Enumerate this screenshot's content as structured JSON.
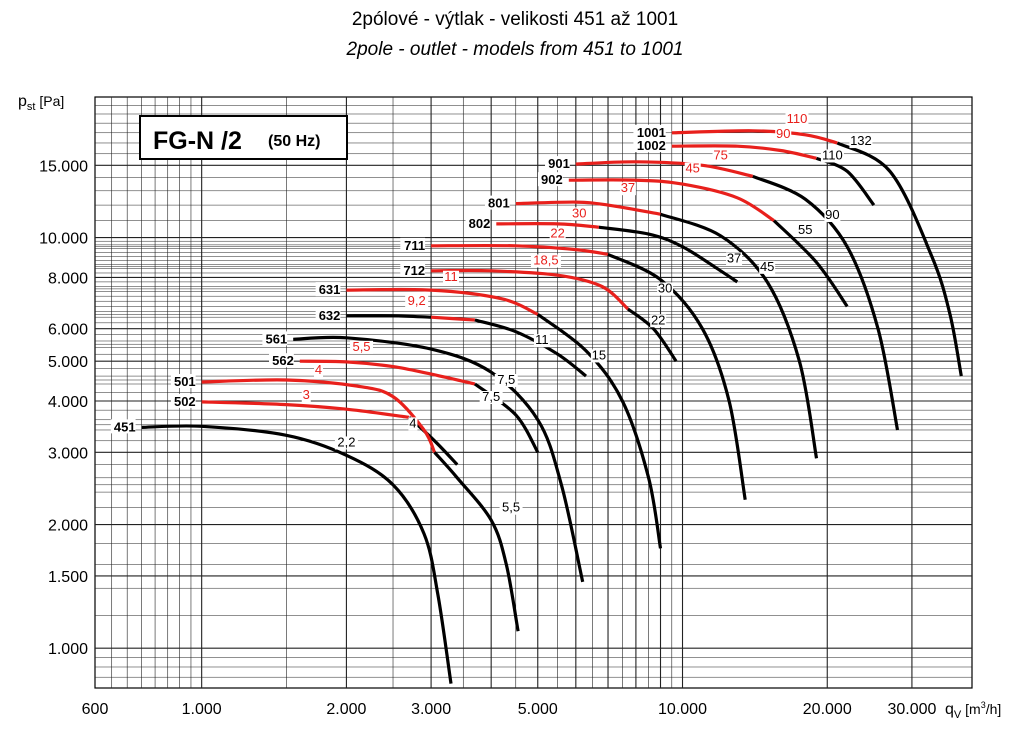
{
  "title_cz": "2pólové - výtlak - velikosti 451 až 1001",
  "title_en": "2pole - outlet - models from 451 to 1001",
  "chart_data": {
    "type": "line",
    "title": "2pólové - výtlak - velikosti 451 až 1001",
    "subtitle": "2pole - outlet - models from 451 to 1001",
    "box_label": "FG-N /2",
    "box_sublabel": "(50 Hz)",
    "ylabel": "p",
    "ylabel_sub": "st",
    "ylabel_unit": "[Pa]",
    "xlabel": "q",
    "xlabel_sub": "V",
    "xlabel_unit": "[m",
    "xlabel_unit_sup": "3",
    "xlabel_unit_end": "/h]",
    "xscale": "log",
    "yscale": "log",
    "xlim": [
      600,
      40000
    ],
    "ylim": [
      800,
      22000
    ],
    "grid": true,
    "xticks": [
      {
        "value": 600,
        "label": "600"
      },
      {
        "value": 1000,
        "label": "1.000"
      },
      {
        "value": 2000,
        "label": "2.000"
      },
      {
        "value": 3000,
        "label": "3.000"
      },
      {
        "value": 5000,
        "label": "5.000"
      },
      {
        "value": 10000,
        "label": "10.000"
      },
      {
        "value": 20000,
        "label": "20.000"
      },
      {
        "value": 30000,
        "label": "30.000"
      }
    ],
    "yticks": [
      {
        "value": 1000,
        "label": "1.000"
      },
      {
        "value": 1500,
        "label": "1.500"
      },
      {
        "value": 2000,
        "label": "2.000"
      },
      {
        "value": 3000,
        "label": "3.000"
      },
      {
        "value": 4000,
        "label": "4.000"
      },
      {
        "value": 5000,
        "label": "5.000"
      },
      {
        "value": 6000,
        "label": "6.000"
      },
      {
        "value": 8000,
        "label": "8.000"
      },
      {
        "value": 10000,
        "label": "10.000"
      },
      {
        "value": 15000,
        "label": "15.000"
      }
    ],
    "colors": {
      "black": "#000000",
      "red": "#e8201c",
      "grid": "#222222"
    },
    "series": [
      {
        "name": "451",
        "segments": [
          {
            "color": "black",
            "points": [
              [
                750,
                3450
              ],
              [
                1000,
                3470
              ],
              [
                1500,
                3300
              ],
              [
                2000,
                2950
              ],
              [
                2500,
                2500
              ],
              [
                2900,
                1900
              ],
              [
                3100,
                1350
              ],
              [
                3300,
                820
              ]
            ]
          }
        ],
        "power_labels": [
          {
            "text": "2,2",
            "color": "black",
            "x": 2000,
            "y": 3100
          }
        ]
      },
      {
        "name": "502",
        "segments": [
          {
            "color": "red",
            "points": [
              [
                1000,
                3980
              ],
              [
                1500,
                3920
              ],
              [
                2000,
                3820
              ],
              [
                2700,
                3650
              ]
            ]
          },
          {
            "color": "black",
            "points": [
              [
                2700,
                3650
              ],
              [
                3050,
                3200
              ],
              [
                3400,
                2800
              ]
            ]
          }
        ],
        "power_labels": [
          {
            "text": "3",
            "color": "red",
            "x": 1650,
            "y": 4050
          },
          {
            "text": "4",
            "color": "black",
            "x": 2750,
            "y": 3450
          }
        ]
      },
      {
        "name": "501",
        "segments": [
          {
            "color": "red",
            "points": [
              [
                1000,
                4450
              ],
              [
                1500,
                4500
              ],
              [
                2100,
                4350
              ],
              [
                2500,
                4100
              ],
              [
                2900,
                3400
              ],
              [
                3050,
                3000
              ]
            ]
          },
          {
            "color": "black",
            "points": [
              [
                3050,
                3000
              ],
              [
                3400,
                2600
              ],
              [
                4000,
                2050
              ],
              [
                4300,
                1600
              ],
              [
                4550,
                1100
              ]
            ]
          }
        ],
        "power_labels": [
          {
            "text": "4",
            "color": "red",
            "x": 1750,
            "y": 4650
          },
          {
            "text": "5,5",
            "color": "black",
            "x": 4400,
            "y": 2150
          }
        ]
      },
      {
        "name": "562",
        "segments": [
          {
            "color": "red",
            "points": [
              [
                1600,
                5000
              ],
              [
                2000,
                4980
              ],
              [
                2500,
                4850
              ],
              [
                3000,
                4650
              ],
              [
                3700,
                4400
              ]
            ]
          },
          {
            "color": "black",
            "points": [
              [
                3700,
                4400
              ],
              [
                4500,
                3700
              ],
              [
                5000,
                3000
              ]
            ]
          }
        ],
        "power_labels": [
          {
            "text": "5,5",
            "color": "red",
            "x": 2150,
            "y": 5300
          },
          {
            "text": "7,5",
            "color": "black",
            "x": 4000,
            "y": 4000
          }
        ]
      },
      {
        "name": "561",
        "segments": [
          {
            "color": "black",
            "points": [
              [
                1550,
                5650
              ],
              [
                2000,
                5700
              ],
              [
                3000,
                5350
              ],
              [
                4000,
                4700
              ],
              [
                5000,
                3600
              ],
              [
                5600,
                2500
              ],
              [
                6200,
                1450
              ]
            ]
          }
        ],
        "power_labels": [
          {
            "text": "7,5",
            "color": "black",
            "x": 4300,
            "y": 4400
          }
        ]
      },
      {
        "name": "632",
        "segments": [
          {
            "color": "black",
            "points": [
              [
                2000,
                6450
              ],
              [
                2500,
                6450
              ],
              [
                3000,
                6400
              ]
            ]
          },
          {
            "color": "red",
            "points": [
              [
                3000,
                6400
              ],
              [
                3700,
                6300
              ]
            ]
          },
          {
            "color": "black",
            "points": [
              [
                3700,
                6300
              ],
              [
                4500,
                5900
              ],
              [
                5500,
                5200
              ],
              [
                6300,
                4600
              ]
            ]
          }
        ],
        "power_labels": [
          {
            "text": "9,2",
            "color": "red",
            "x": 2800,
            "y": 6850
          },
          {
            "text": "11",
            "color": "black",
            "x": 5100,
            "y": 5500
          }
        ]
      },
      {
        "name": "631",
        "segments": [
          {
            "color": "red",
            "points": [
              [
                2000,
                7450
              ],
              [
                3000,
                7450
              ],
              [
                4200,
                7100
              ],
              [
                5000,
                6500
              ]
            ]
          },
          {
            "color": "black",
            "points": [
              [
                5000,
                6500
              ],
              [
                6300,
                5300
              ],
              [
                7500,
                4000
              ],
              [
                8500,
                2600
              ],
              [
                9000,
                1750
              ]
            ]
          }
        ],
        "power_labels": [
          {
            "text": "11",
            "color": "red",
            "x": 3300,
            "y": 7850
          },
          {
            "text": "15",
            "color": "black",
            "x": 6700,
            "y": 5050
          }
        ]
      },
      {
        "name": "712",
        "segments": [
          {
            "color": "red",
            "points": [
              [
                3000,
                8300
              ],
              [
                4000,
                8300
              ],
              [
                5500,
                8100
              ],
              [
                6800,
                7600
              ],
              [
                7700,
                6700
              ]
            ]
          },
          {
            "color": "black",
            "points": [
              [
                7700,
                6700
              ],
              [
                8700,
                6000
              ],
              [
                9700,
                5000
              ]
            ]
          }
        ],
        "power_labels": [
          {
            "text": "18,5",
            "color": "red",
            "x": 5200,
            "y": 8600
          },
          {
            "text": "22",
            "color": "black",
            "x": 8900,
            "y": 6150
          }
        ]
      },
      {
        "name": "711",
        "segments": [
          {
            "color": "red",
            "points": [
              [
                3000,
                9550
              ],
              [
                4500,
                9550
              ],
              [
                6000,
                9350
              ],
              [
                7000,
                9100
              ]
            ]
          },
          {
            "color": "black",
            "points": [
              [
                7000,
                9100
              ],
              [
                9000,
                7900
              ],
              [
                11000,
                6000
              ],
              [
                12500,
                4000
              ],
              [
                13500,
                2300
              ]
            ]
          }
        ],
        "power_labels": [
          {
            "text": "22",
            "color": "red",
            "x": 5500,
            "y": 10000
          },
          {
            "text": "30",
            "color": "black",
            "x": 9200,
            "y": 7350
          }
        ]
      },
      {
        "name": "802",
        "segments": [
          {
            "color": "red",
            "points": [
              [
                4100,
                10800
              ],
              [
                5500,
                10800
              ],
              [
                6700,
                10600
              ]
            ]
          },
          {
            "color": "black",
            "points": [
              [
                6700,
                10600
              ],
              [
                8500,
                10200
              ],
              [
                10000,
                9500
              ],
              [
                12000,
                8300
              ],
              [
                13000,
                7800
              ]
            ]
          }
        ],
        "power_labels": [
          {
            "text": "30",
            "color": "red",
            "x": 6100,
            "y": 11200
          },
          {
            "text": "37",
            "color": "black",
            "x": 12800,
            "y": 8700
          }
        ]
      },
      {
        "name": "801",
        "segments": [
          {
            "color": "red",
            "points": [
              [
                4500,
                12100
              ],
              [
                6000,
                12200
              ],
              [
                7000,
                12000
              ],
              [
                9000,
                11400
              ]
            ]
          },
          {
            "color": "black",
            "points": [
              [
                9000,
                11400
              ],
              [
                12000,
                10100
              ],
              [
                15000,
                7800
              ],
              [
                17500,
                5000
              ],
              [
                19000,
                2900
              ]
            ]
          }
        ],
        "power_labels": [
          {
            "text": "37",
            "color": "red",
            "x": 7700,
            "y": 12900
          },
          {
            "text": "45",
            "color": "black",
            "x": 15000,
            "y": 8300
          }
        ]
      },
      {
        "name": "902",
        "segments": [
          {
            "color": "red",
            "points": [
              [
                5800,
                13800
              ],
              [
                8000,
                13800
              ],
              [
                10000,
                13500
              ],
              [
                13000,
                12500
              ],
              [
                15500,
                11000
              ]
            ]
          },
          {
            "color": "black",
            "points": [
              [
                15500,
                11000
              ],
              [
                19000,
                8700
              ],
              [
                22000,
                6800
              ]
            ]
          }
        ],
        "power_labels": [
          {
            "text": "45",
            "color": "red",
            "x": 10500,
            "y": 14400
          },
          {
            "text": "55",
            "color": "black",
            "x": 18000,
            "y": 10200
          }
        ]
      },
      {
        "name": "901",
        "segments": [
          {
            "color": "red",
            "points": [
              [
                6000,
                15100
              ],
              [
                8000,
                15300
              ],
              [
                11000,
                15000
              ],
              [
                14000,
                14100
              ]
            ]
          },
          {
            "color": "black",
            "points": [
              [
                14000,
                14100
              ],
              [
                18000,
                12400
              ],
              [
                22000,
                9500
              ],
              [
                25500,
                6000
              ],
              [
                28000,
                3400
              ]
            ]
          }
        ],
        "power_labels": [
          {
            "text": "75",
            "color": "red",
            "x": 12000,
            "y": 15500
          },
          {
            "text": "90",
            "color": "black",
            "x": 20500,
            "y": 11100
          }
        ]
      },
      {
        "name": "1002",
        "segments": [
          {
            "color": "red",
            "points": [
              [
                9500,
                16700
              ],
              [
                13000,
                16700
              ],
              [
                16000,
                16300
              ],
              [
                19000,
                15600
              ]
            ]
          },
          {
            "color": "black",
            "points": [
              [
                19000,
                15600
              ],
              [
                22000,
                14500
              ],
              [
                25000,
                12000
              ]
            ]
          }
        ],
        "power_labels": [
          {
            "text": "90",
            "color": "red",
            "x": 16200,
            "y": 17500
          },
          {
            "text": "110",
            "color": "black",
            "x": 20500,
            "y": 15500
          }
        ]
      },
      {
        "name": "1001",
        "segments": [
          {
            "color": "red",
            "points": [
              [
                9500,
                18000
              ],
              [
                14000,
                18200
              ],
              [
                18000,
                17800
              ],
              [
                21000,
                17000
              ]
            ]
          },
          {
            "color": "black",
            "points": [
              [
                21000,
                17000
              ],
              [
                27000,
                14500
              ],
              [
                33000,
                9000
              ],
              [
                36000,
                6500
              ],
              [
                38000,
                4600
              ]
            ]
          }
        ],
        "power_labels": [
          {
            "text": "110",
            "color": "red",
            "x": 17300,
            "y": 19000
          },
          {
            "text": "132",
            "color": "black",
            "x": 23500,
            "y": 16800
          }
        ]
      }
    ]
  }
}
